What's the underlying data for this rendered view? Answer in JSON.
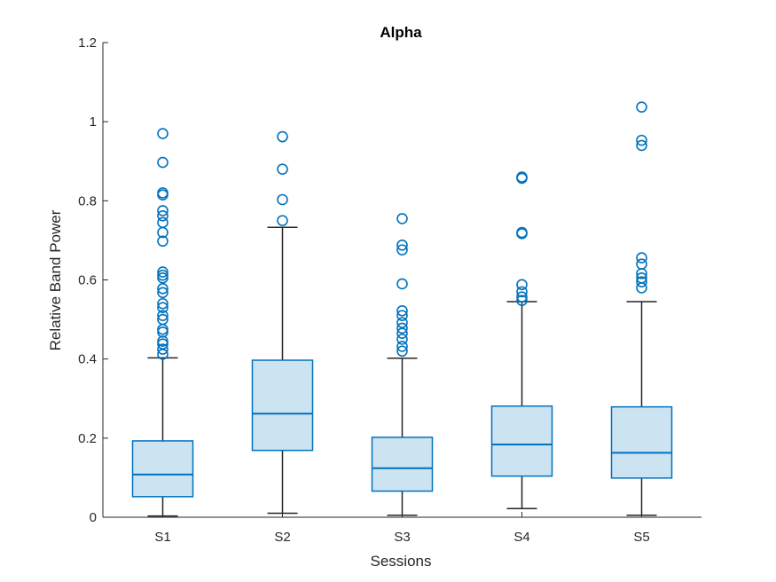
{
  "chart_data": {
    "type": "box",
    "title": "Alpha",
    "xlabel": "Sessions",
    "ylabel": "Relative Band Power",
    "categories": [
      "S1",
      "S2",
      "S3",
      "S4",
      "S5"
    ],
    "ylim": [
      0,
      1.2
    ],
    "yticks": [
      0,
      0.2,
      0.4,
      0.6,
      0.8,
      1,
      1.2
    ],
    "ytick_labels": [
      "0",
      "0.2",
      "0.4",
      "0.6",
      "0.8",
      "1",
      "1.2"
    ],
    "grid": false,
    "legend": "none",
    "colors": {
      "box_edge": "#0072BD",
      "box_fill": "#CCE3F2",
      "whisker": "#262626",
      "outlier": "#0072BD",
      "axis": "#262626"
    },
    "boxes": [
      {
        "category": "S1",
        "whisker_low": 0.003,
        "q1": 0.052,
        "median": 0.108,
        "q3": 0.193,
        "whisker_high": 0.403,
        "outliers": [
          0.97,
          0.897,
          0.82,
          0.815,
          0.775,
          0.762,
          0.745,
          0.72,
          0.698,
          0.62,
          0.612,
          0.605,
          0.578,
          0.568,
          0.54,
          0.53,
          0.51,
          0.5,
          0.475,
          0.468,
          0.445,
          0.438,
          0.425,
          0.412
        ]
      },
      {
        "category": "S2",
        "whisker_low": 0.01,
        "q1": 0.169,
        "median": 0.262,
        "q3": 0.397,
        "whisker_high": 0.733,
        "outliers": [
          0.962,
          0.88,
          0.803,
          0.75
        ]
      },
      {
        "category": "S3",
        "whisker_low": 0.005,
        "q1": 0.066,
        "median": 0.124,
        "q3": 0.202,
        "whisker_high": 0.402,
        "outliers": [
          0.755,
          0.688,
          0.676,
          0.59,
          0.522,
          0.51,
          0.492,
          0.478,
          0.465,
          0.45,
          0.432,
          0.42
        ]
      },
      {
        "category": "S4",
        "whisker_low": 0.022,
        "q1": 0.104,
        "median": 0.184,
        "q3": 0.281,
        "whisker_high": 0.545,
        "outliers": [
          0.86,
          0.857,
          0.72,
          0.717,
          0.588,
          0.57,
          0.557,
          0.548
        ]
      },
      {
        "category": "S5",
        "whisker_low": 0.005,
        "q1": 0.099,
        "median": 0.163,
        "q3": 0.279,
        "whisker_high": 0.545,
        "outliers": [
          1.037,
          0.953,
          0.94,
          0.656,
          0.64,
          0.616,
          0.605,
          0.595,
          0.58
        ]
      }
    ]
  }
}
